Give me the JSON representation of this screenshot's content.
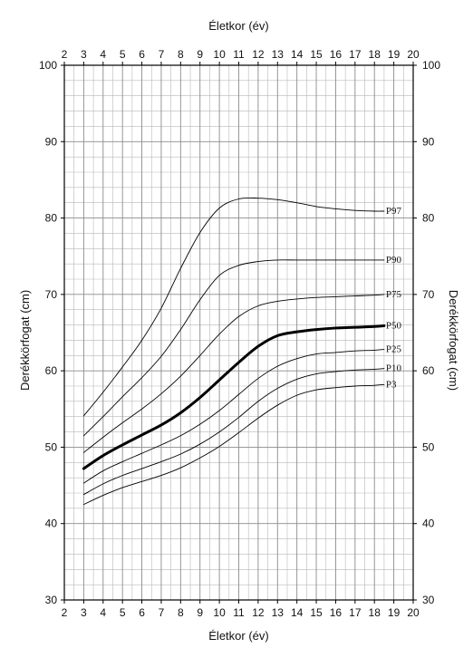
{
  "chart_data": {
    "type": "line",
    "x_axis_label": "Életkor (év)",
    "y_axis_label": "Derékkörfogat (cm)",
    "xlim": [
      2,
      20
    ],
    "ylim": [
      30,
      100
    ],
    "x_ticks": [
      2,
      3,
      4,
      5,
      6,
      7,
      8,
      9,
      10,
      11,
      12,
      13,
      14,
      15,
      16,
      17,
      18,
      19,
      20
    ],
    "y_ticks": [
      30,
      40,
      50,
      60,
      70,
      80,
      90,
      100
    ],
    "grid": true,
    "series": [
      {
        "name": "P3",
        "x": [
          3,
          4,
          5,
          6,
          7,
          8,
          9,
          10,
          11,
          12,
          13,
          14,
          15,
          16,
          17,
          18,
          18.5
        ],
        "y": [
          42.5,
          43.7,
          44.7,
          45.5,
          46.3,
          47.3,
          48.6,
          50.1,
          51.9,
          53.8,
          55.5,
          56.8,
          57.5,
          57.8,
          58.0,
          58.1,
          58.2
        ]
      },
      {
        "name": "P10",
        "x": [
          3,
          4,
          5,
          6,
          7,
          8,
          9,
          10,
          11,
          12,
          13,
          14,
          15,
          16,
          17,
          18,
          18.5
        ],
        "y": [
          43.8,
          45.2,
          46.3,
          47.2,
          48.1,
          49.1,
          50.4,
          52.0,
          53.9,
          56.0,
          57.7,
          58.9,
          59.6,
          59.9,
          60.1,
          60.2,
          60.3
        ]
      },
      {
        "name": "P25",
        "x": [
          3,
          4,
          5,
          6,
          7,
          8,
          9,
          10,
          11,
          12,
          13,
          14,
          15,
          16,
          17,
          18,
          18.5
        ],
        "y": [
          45.3,
          46.9,
          48.1,
          49.2,
          50.3,
          51.5,
          53.0,
          54.8,
          56.9,
          59.0,
          60.6,
          61.6,
          62.2,
          62.4,
          62.6,
          62.7,
          62.8
        ]
      },
      {
        "name": "P50",
        "x": [
          3,
          4,
          5,
          6,
          7,
          8,
          9,
          10,
          11,
          12,
          13,
          14,
          15,
          16,
          17,
          18,
          18.5
        ],
        "y": [
          47.2,
          48.9,
          50.3,
          51.6,
          52.9,
          54.5,
          56.5,
          58.8,
          61.1,
          63.2,
          64.6,
          65.1,
          65.4,
          65.6,
          65.7,
          65.8,
          65.9
        ]
      },
      {
        "name": "P75",
        "x": [
          3,
          4,
          5,
          6,
          7,
          8,
          9,
          10,
          11,
          12,
          13,
          14,
          15,
          16,
          17,
          18,
          18.5
        ],
        "y": [
          49.3,
          51.3,
          53.2,
          55.0,
          57.0,
          59.3,
          62.0,
          64.8,
          67.1,
          68.5,
          69.1,
          69.4,
          69.6,
          69.7,
          69.8,
          69.9,
          70.0
        ]
      },
      {
        "name": "P90",
        "x": [
          3,
          4,
          5,
          6,
          7,
          8,
          9,
          10,
          11,
          12,
          13,
          14,
          15,
          16,
          17,
          18,
          18.5
        ],
        "y": [
          51.5,
          54.0,
          56.6,
          59.1,
          61.9,
          65.4,
          69.3,
          72.5,
          73.8,
          74.3,
          74.5,
          74.5,
          74.5,
          74.5,
          74.5,
          74.5,
          74.5
        ]
      },
      {
        "name": "P97",
        "x": [
          3,
          4,
          5,
          6,
          7,
          8,
          9,
          10,
          11,
          12,
          13,
          14,
          15,
          16,
          17,
          18,
          18.5
        ],
        "y": [
          54.1,
          57.2,
          60.5,
          64.0,
          68.2,
          73.4,
          78.1,
          81.3,
          82.5,
          82.6,
          82.4,
          82.0,
          81.5,
          81.2,
          81.0,
          80.9,
          80.9
        ]
      }
    ],
    "bold_series": "P50"
  }
}
